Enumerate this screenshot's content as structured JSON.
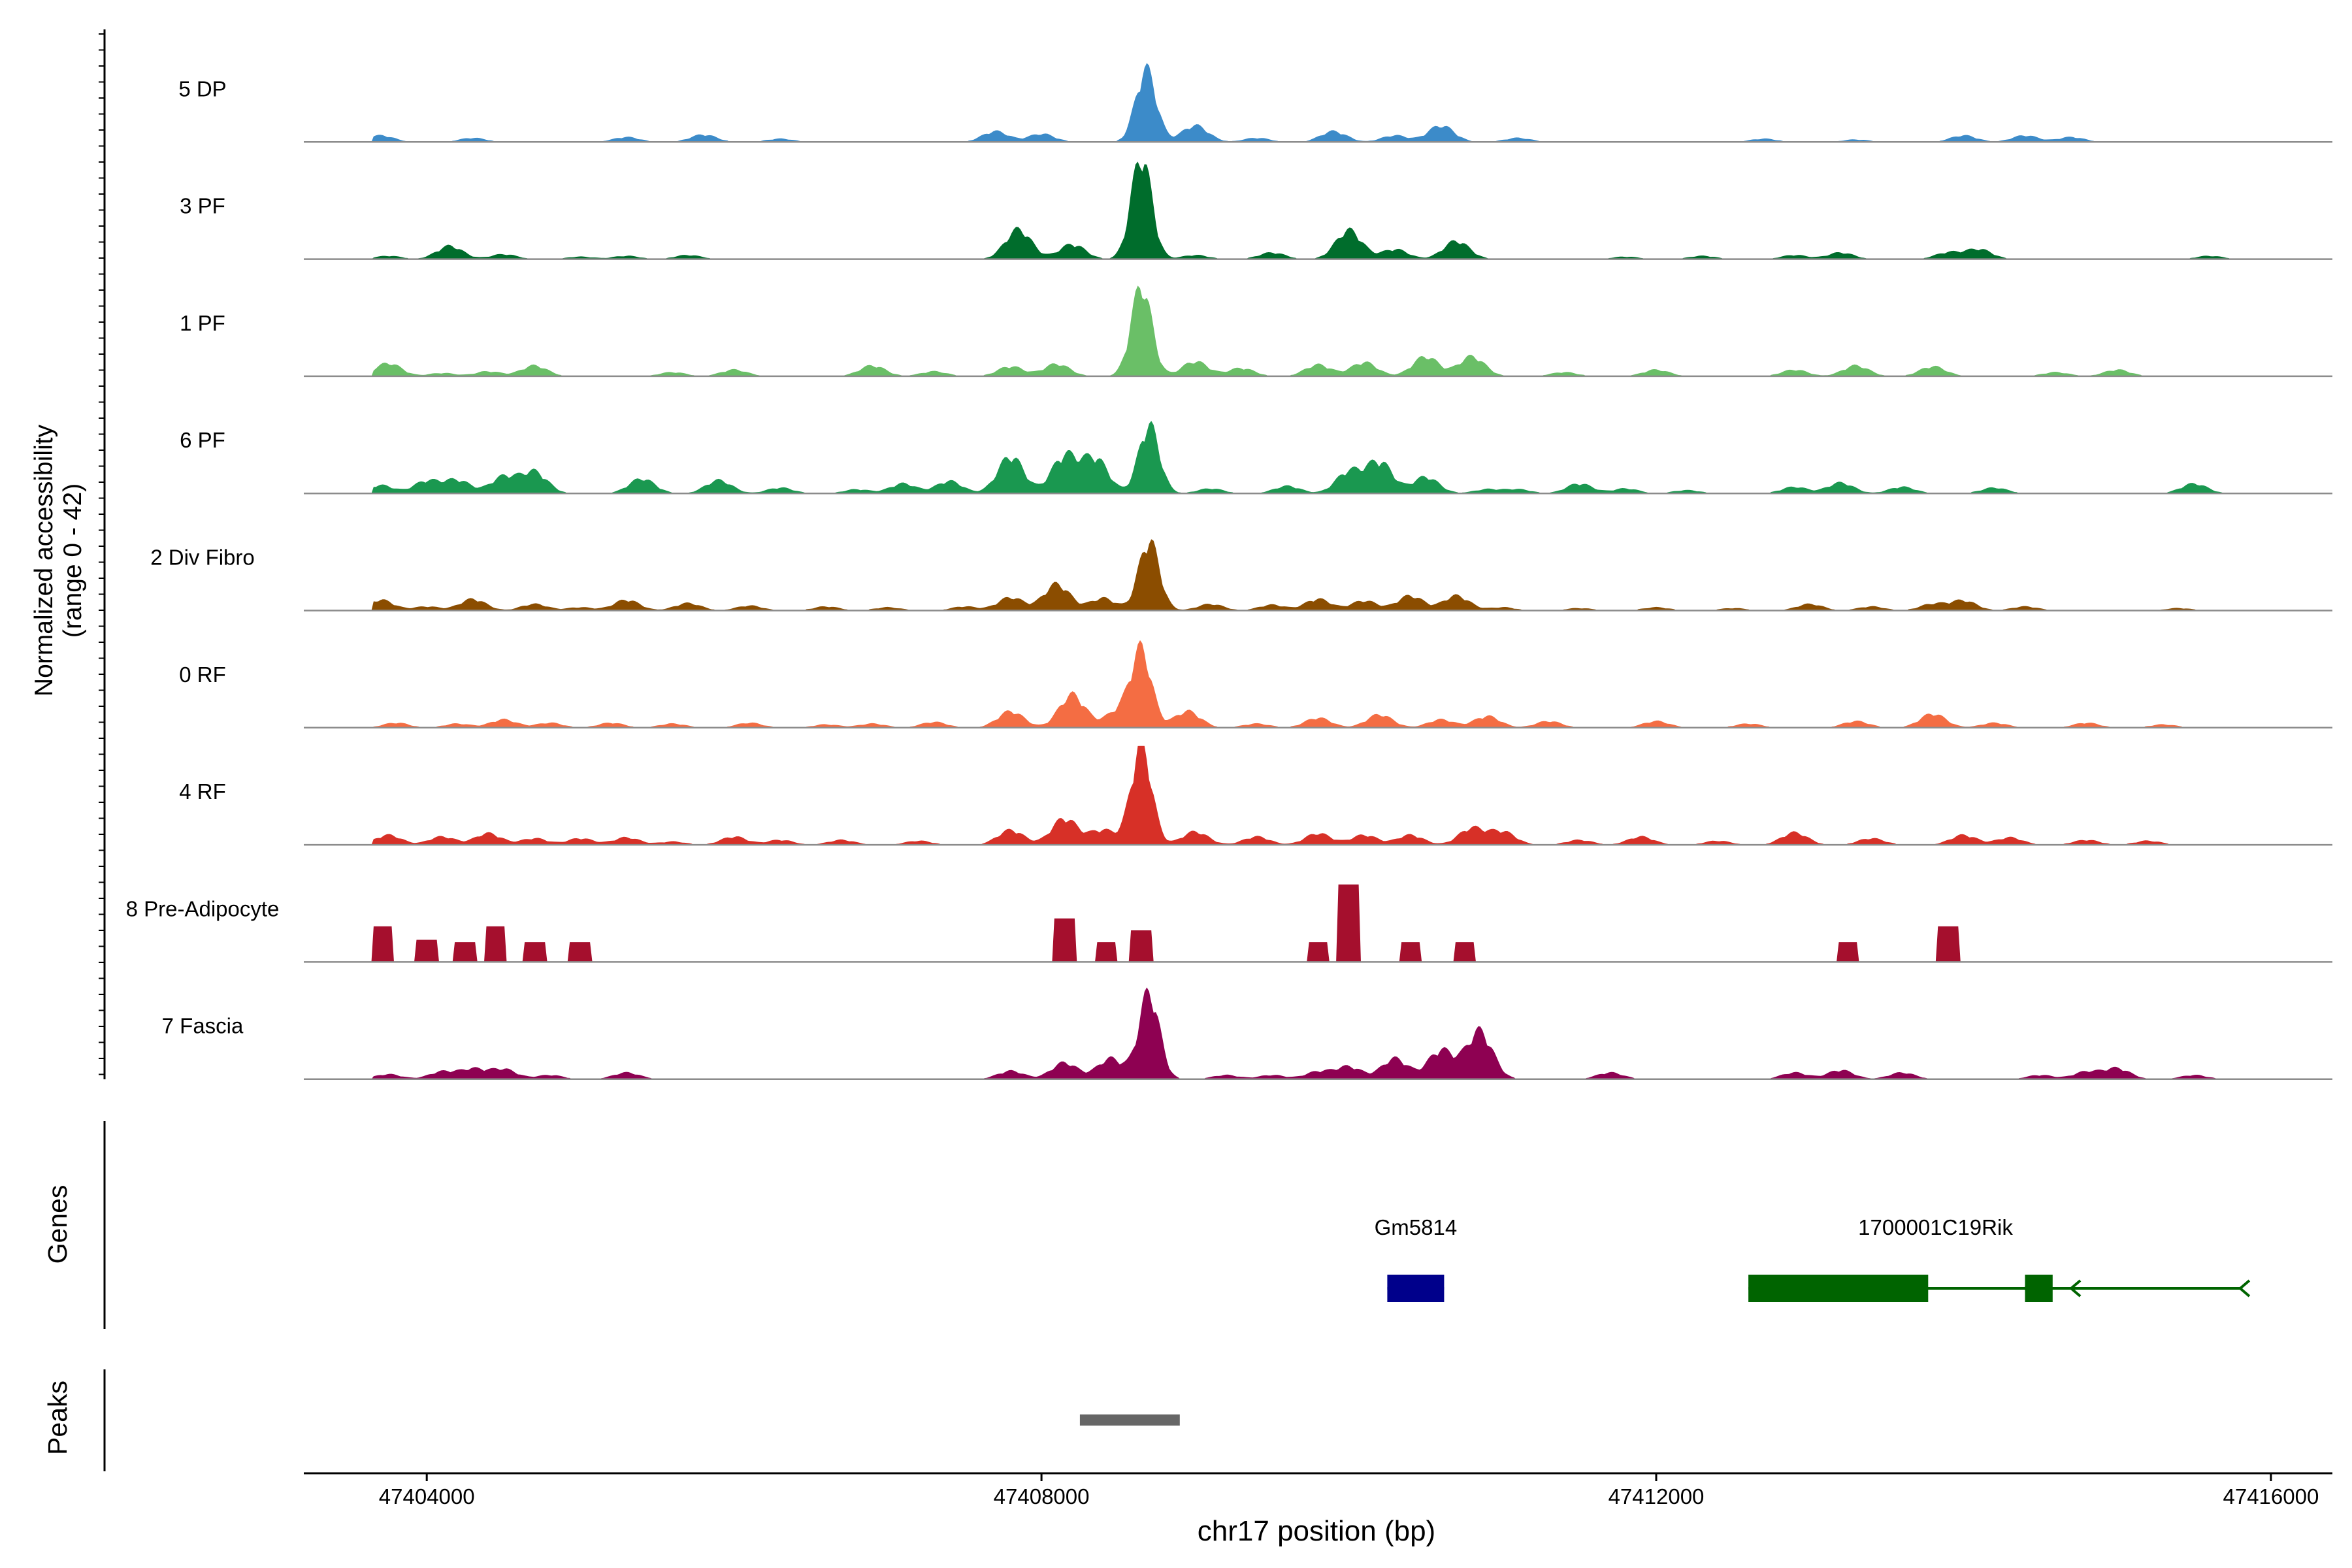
{
  "chart_data": {
    "type": "area",
    "title": "",
    "xlabel": "chr17 position (bp)",
    "ylabel": "Normalized accessibility",
    "ylabel_range": "(range 0 - 42)",
    "ylim": [
      0,
      42
    ],
    "xlim": [
      47403200,
      47416400
    ],
    "x_ticks": [
      47404000,
      47408000,
      47412000,
      47416000
    ],
    "x_tick_labels": [
      "47404000",
      "47408000",
      "47412000",
      "47416000"
    ],
    "tracks": [
      {
        "name": "5 DP",
        "color": "#3C8BC9",
        "peaks": [
          [
            47403700,
            0.8
          ],
          [
            47404300,
            0.5
          ],
          [
            47405300,
            0.6
          ],
          [
            47405800,
            0.9
          ],
          [
            47406300,
            0.4
          ],
          [
            47407700,
            1.3
          ],
          [
            47408000,
            1.0
          ],
          [
            47408680,
            8.8
          ],
          [
            47409000,
            2.0
          ],
          [
            47409400,
            0.5
          ],
          [
            47409900,
            1.3
          ],
          [
            47410300,
            0.8
          ],
          [
            47410600,
            2.0
          ],
          [
            47411100,
            0.5
          ],
          [
            47412700,
            0.4
          ],
          [
            47413300,
            0.3
          ],
          [
            47414000,
            0.8
          ],
          [
            47414400,
            0.8
          ],
          [
            47414700,
            0.6
          ]
        ]
      },
      {
        "name": "3 PF",
        "color": "#006D2C",
        "peaks": [
          [
            47403750,
            0.4
          ],
          [
            47404150,
            1.6
          ],
          [
            47404500,
            0.6
          ],
          [
            47405000,
            0.3
          ],
          [
            47405300,
            0.4
          ],
          [
            47405700,
            0.5
          ],
          [
            47407850,
            3.6
          ],
          [
            47408200,
            1.8
          ],
          [
            47408650,
            12.5
          ],
          [
            47409000,
            0.5
          ],
          [
            47409500,
            0.8
          ],
          [
            47410000,
            3.5
          ],
          [
            47410300,
            1.2
          ],
          [
            47410700,
            2.2
          ],
          [
            47411800,
            0.3
          ],
          [
            47412300,
            0.4
          ],
          [
            47412900,
            0.5
          ],
          [
            47413200,
            0.8
          ],
          [
            47413900,
            0.8
          ],
          [
            47414100,
            1.2
          ],
          [
            47415600,
            0.4
          ]
        ]
      },
      {
        "name": "1 PF",
        "color": "#6ABF67",
        "peaks": [
          [
            47403750,
            1.6
          ],
          [
            47404100,
            0.4
          ],
          [
            47404400,
            0.6
          ],
          [
            47404700,
            1.3
          ],
          [
            47405600,
            0.5
          ],
          [
            47406000,
            0.8
          ],
          [
            47406900,
            1.3
          ],
          [
            47407300,
            0.6
          ],
          [
            47407800,
            1.2
          ],
          [
            47408100,
            1.5
          ],
          [
            47408650,
            11.0
          ],
          [
            47409000,
            1.8
          ],
          [
            47409300,
            1.0
          ],
          [
            47409800,
            1.4
          ],
          [
            47410100,
            1.7
          ],
          [
            47410500,
            2.4
          ],
          [
            47410800,
            2.4
          ],
          [
            47411400,
            0.5
          ],
          [
            47412000,
            0.8
          ],
          [
            47412900,
            0.8
          ],
          [
            47413300,
            1.3
          ],
          [
            47413800,
            1.2
          ],
          [
            47414600,
            0.5
          ],
          [
            47415000,
            0.8
          ]
        ]
      },
      {
        "name": "6 PF",
        "color": "#1A9850",
        "peaks": [
          [
            47403700,
            1.0
          ],
          [
            47404000,
            1.5
          ],
          [
            47404200,
            1.6
          ],
          [
            47404500,
            2.0
          ],
          [
            47404700,
            2.6
          ],
          [
            47405400,
            1.8
          ],
          [
            47405900,
            1.6
          ],
          [
            47406300,
            0.7
          ],
          [
            47406800,
            0.5
          ],
          [
            47407100,
            1.2
          ],
          [
            47407400,
            1.5
          ],
          [
            47407800,
            4.5
          ],
          [
            47408150,
            4.5
          ],
          [
            47408350,
            4.2
          ],
          [
            47408700,
            8.3
          ],
          [
            47409100,
            0.6
          ],
          [
            47409600,
            0.9
          ],
          [
            47410000,
            2.6
          ],
          [
            47410200,
            3.8
          ],
          [
            47410500,
            2.0
          ],
          [
            47410900,
            0.5
          ],
          [
            47411100,
            0.5
          ],
          [
            47411500,
            1.2
          ],
          [
            47411800,
            0.6
          ],
          [
            47412200,
            0.4
          ],
          [
            47412900,
            0.8
          ],
          [
            47413200,
            1.3
          ],
          [
            47413600,
            0.8
          ],
          [
            47414200,
            0.7
          ],
          [
            47415500,
            1.2
          ]
        ]
      },
      {
        "name": "2 Div Fibro",
        "color": "#8B4D00",
        "peaks": [
          [
            47403700,
            1.3
          ],
          [
            47404000,
            0.5
          ],
          [
            47404300,
            1.4
          ],
          [
            47404700,
            0.8
          ],
          [
            47405000,
            0.4
          ],
          [
            47405300,
            1.3
          ],
          [
            47405700,
            0.9
          ],
          [
            47406100,
            0.6
          ],
          [
            47406600,
            0.5
          ],
          [
            47407000,
            0.4
          ],
          [
            47407500,
            0.5
          ],
          [
            47407800,
            1.6
          ],
          [
            47408100,
            3.2
          ],
          [
            47408400,
            1.5
          ],
          [
            47408700,
            8.5
          ],
          [
            47409100,
            0.8
          ],
          [
            47409500,
            0.7
          ],
          [
            47409800,
            1.4
          ],
          [
            47410100,
            1.2
          ],
          [
            47410400,
            1.8
          ],
          [
            47410700,
            1.8
          ],
          [
            47411000,
            0.4
          ],
          [
            47411500,
            0.3
          ],
          [
            47412000,
            0.4
          ],
          [
            47412500,
            0.3
          ],
          [
            47413000,
            0.8
          ],
          [
            47413400,
            0.5
          ],
          [
            47413800,
            0.8
          ],
          [
            47414000,
            1.2
          ],
          [
            47414400,
            0.5
          ],
          [
            47415400,
            0.3
          ]
        ]
      },
      {
        "name": "0 RF",
        "color": "#F46D43",
        "peaks": [
          [
            47403800,
            0.6
          ],
          [
            47404200,
            0.5
          ],
          [
            47404500,
            1.0
          ],
          [
            47404800,
            0.6
          ],
          [
            47405200,
            0.6
          ],
          [
            47405600,
            0.5
          ],
          [
            47406100,
            0.6
          ],
          [
            47406600,
            0.4
          ],
          [
            47406900,
            0.5
          ],
          [
            47407300,
            0.7
          ],
          [
            47407800,
            2.0
          ],
          [
            47408200,
            4.0
          ],
          [
            47408500,
            2.0
          ],
          [
            47408650,
            9.2
          ],
          [
            47408950,
            2.0
          ],
          [
            47409400,
            0.5
          ],
          [
            47409800,
            1.2
          ],
          [
            47410200,
            1.6
          ],
          [
            47410600,
            1.0
          ],
          [
            47410900,
            1.4
          ],
          [
            47411300,
            0.8
          ],
          [
            47412000,
            0.8
          ],
          [
            47412600,
            0.5
          ],
          [
            47413300,
            0.8
          ],
          [
            47413800,
            1.7
          ],
          [
            47414200,
            0.6
          ],
          [
            47414800,
            0.6
          ],
          [
            47415300,
            0.4
          ]
        ]
      },
      {
        "name": "4 RF",
        "color": "#D73027",
        "peaks": [
          [
            47403750,
            1.2
          ],
          [
            47404100,
            1.0
          ],
          [
            47404400,
            1.4
          ],
          [
            47404700,
            0.8
          ],
          [
            47405000,
            0.8
          ],
          [
            47405300,
            0.9
          ],
          [
            47405600,
            0.4
          ],
          [
            47406000,
            1.0
          ],
          [
            47406300,
            0.6
          ],
          [
            47406700,
            0.6
          ],
          [
            47407200,
            0.5
          ],
          [
            47407800,
            1.8
          ],
          [
            47408150,
            3.2
          ],
          [
            47408400,
            1.8
          ],
          [
            47408650,
            12.2
          ],
          [
            47409000,
            1.6
          ],
          [
            47409400,
            1.0
          ],
          [
            47409800,
            1.4
          ],
          [
            47410100,
            1.2
          ],
          [
            47410400,
            1.2
          ],
          [
            47410800,
            2.0
          ],
          [
            47411000,
            1.6
          ],
          [
            47411500,
            0.6
          ],
          [
            47411900,
            1.0
          ],
          [
            47412400,
            0.5
          ],
          [
            47412900,
            1.5
          ],
          [
            47413400,
            0.8
          ],
          [
            47414000,
            1.2
          ],
          [
            47414300,
            0.9
          ],
          [
            47414800,
            0.6
          ],
          [
            47415200,
            0.5
          ]
        ]
      },
      {
        "name": "8 Pre-Adipocyte",
        "color": "#A50F2D",
        "peaks": [
          [
            47403710,
            4.5
          ],
          [
            47404000,
            2.8
          ],
          [
            47404250,
            2.5
          ],
          [
            47404450,
            4.5
          ],
          [
            47404700,
            2.5
          ],
          [
            47405000,
            2.5
          ],
          [
            47408150,
            5.5
          ],
          [
            47408420,
            2.5
          ],
          [
            47408650,
            4.0
          ],
          [
            47409800,
            2.5
          ],
          [
            47410000,
            9.8
          ],
          [
            47410400,
            2.5
          ],
          [
            47410750,
            2.5
          ],
          [
            47413250,
            2.5
          ],
          [
            47413900,
            4.5
          ]
        ]
      },
      {
        "name": "7 Fascia",
        "color": "#8E0152",
        "peaks": [
          [
            47403750,
            0.6
          ],
          [
            47404100,
            0.9
          ],
          [
            47404300,
            1.2
          ],
          [
            47404500,
            1.2
          ],
          [
            47404800,
            0.5
          ],
          [
            47405300,
            0.8
          ],
          [
            47407800,
            1.0
          ],
          [
            47408150,
            2.0
          ],
          [
            47408450,
            2.5
          ],
          [
            47408700,
            10.5
          ],
          [
            47409200,
            0.5
          ],
          [
            47409500,
            0.5
          ],
          [
            47409800,
            0.9
          ],
          [
            47410000,
            1.5
          ],
          [
            47410300,
            2.5
          ],
          [
            47410600,
            3.5
          ],
          [
            47410850,
            5.8
          ],
          [
            47411700,
            0.8
          ],
          [
            47412900,
            0.8
          ],
          [
            47413200,
            1.1
          ],
          [
            47413600,
            0.8
          ],
          [
            47414500,
            0.5
          ],
          [
            47414800,
            0.9
          ],
          [
            47415000,
            1.3
          ],
          [
            47415500,
            0.5
          ]
        ]
      }
    ],
    "genes_label": "Genes",
    "genes": [
      {
        "name": "Gm5814",
        "color": "#00008B",
        "start": 47410250,
        "end": 47410620,
        "strand": "",
        "exons": [
          [
            47410250,
            47410620
          ]
        ]
      },
      {
        "name": "1700001C19Rik",
        "color": "#006400",
        "start": 47412600,
        "end": 47415800,
        "strand": "-",
        "exons": [
          [
            47412600,
            47413770
          ],
          [
            47414400,
            47414580
          ]
        ]
      }
    ],
    "peaks_label": "Peaks",
    "peak_regions": [
      {
        "start": 47408250,
        "end": 47408900,
        "color": "#666666"
      }
    ],
    "grid": false,
    "legend": "none"
  }
}
